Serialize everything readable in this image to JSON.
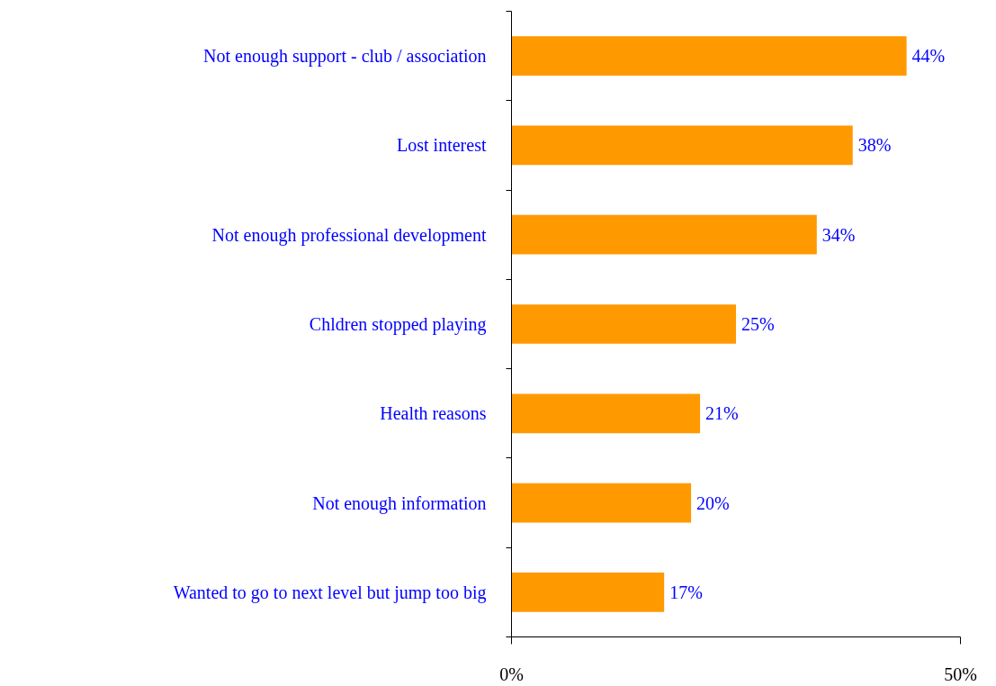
{
  "chart_data": {
    "type": "bar",
    "orientation": "horizontal",
    "categories": [
      "Not enough support - club / association",
      "Lost interest",
      "Not enough professional development",
      "Chldren stopped playing",
      "Health reasons",
      "Not enough information",
      "Wanted to go to next level but jump too big"
    ],
    "values": [
      44,
      38,
      34,
      25,
      21,
      20,
      17
    ],
    "value_labels": [
      "44%",
      "38%",
      "34%",
      "25%",
      "21%",
      "20%",
      "17%"
    ],
    "color": "#ff9900",
    "xlim": [
      0,
      50
    ],
    "xticks": [
      {
        "value": 0,
        "label": "0%"
      },
      {
        "value": 50,
        "label": "50%"
      }
    ],
    "grid": false
  }
}
